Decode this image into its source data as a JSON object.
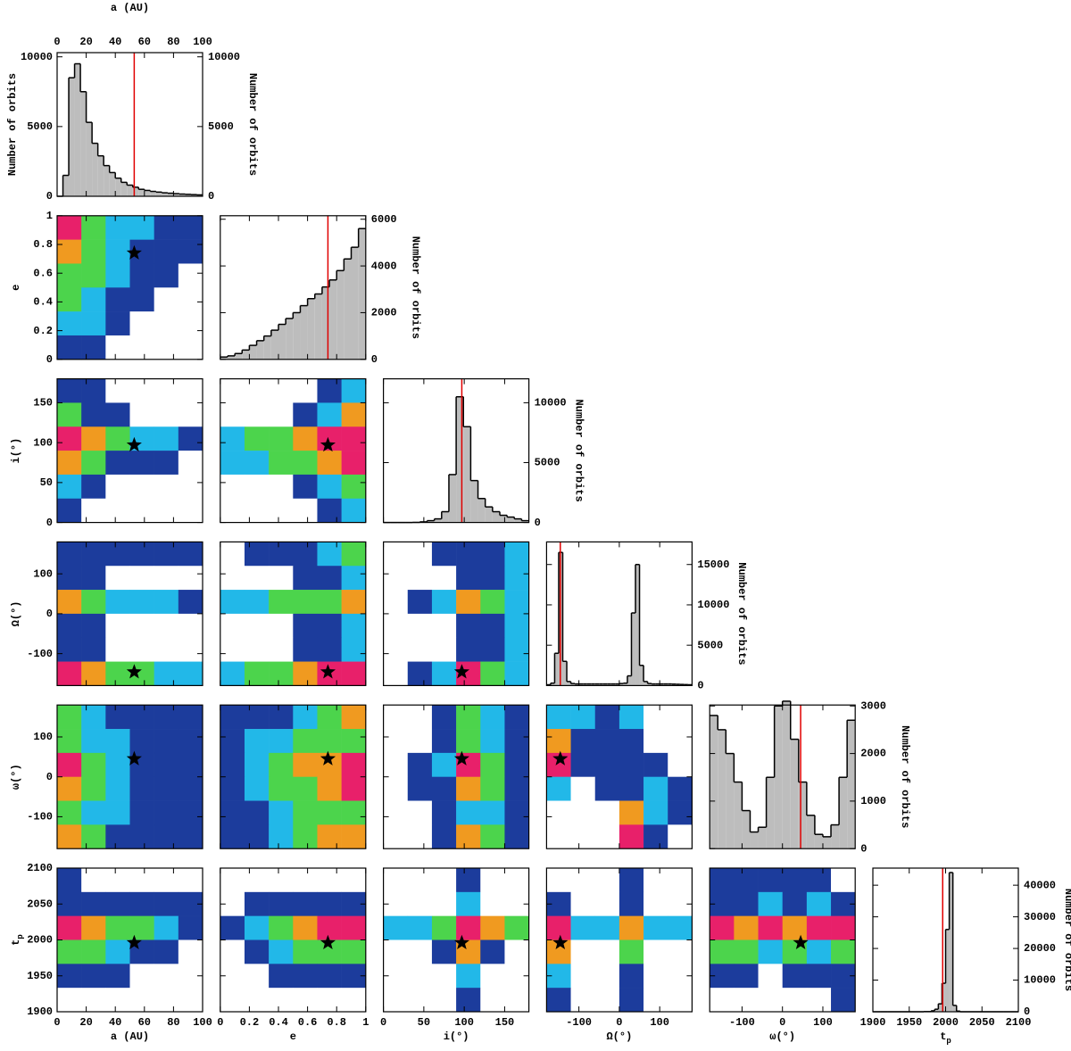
{
  "chart_data": {
    "type": "corner",
    "hist_ylabel": "Number of orbits",
    "hist_color": "#bdbdbd",
    "best_color": "#e00000",
    "density_colors": [
      "#ffffff",
      "#1c3c9c",
      "#22b8e8",
      "#4cd44c",
      "#f09a20",
      "#e8206a"
    ],
    "params": [
      {
        "label": "a (AU)",
        "lim": [
          0,
          100
        ],
        "ticks": [
          0,
          20,
          40,
          60,
          80,
          100
        ],
        "best": 53
      },
      {
        "label": "e",
        "lim": [
          0,
          1
        ],
        "ticks": [
          0,
          0.2,
          0.4,
          0.6,
          0.8,
          1
        ],
        "best": 0.74
      },
      {
        "label": "i(°)",
        "lim": [
          0,
          180
        ],
        "ticks": [
          0,
          50,
          100,
          150
        ],
        "best": 97
      },
      {
        "label": "Ω(°)",
        "lim": [
          -180,
          180
        ],
        "ticks": [
          -100,
          0,
          100
        ],
        "best": -146
      },
      {
        "label": "ω(°)",
        "lim": [
          -180,
          180
        ],
        "ticks": [
          -100,
          0,
          100
        ],
        "best": 45
      },
      {
        "label": "t",
        "sub": "p",
        "lim": [
          1900,
          2100
        ],
        "ticks": [
          1900,
          1950,
          2000,
          2050,
          2100
        ],
        "best": 1996
      }
    ],
    "histograms": [
      {
        "ylim": [
          0,
          10300
        ],
        "yticks": [
          0,
          5000,
          10000
        ],
        "bins": [
          0,
          4,
          8,
          12,
          16,
          20,
          24,
          28,
          32,
          36,
          40,
          44,
          48,
          52,
          56,
          60,
          64,
          68,
          72,
          76,
          80,
          84,
          88,
          92,
          96,
          100
        ],
        "values": [
          0,
          1500,
          8500,
          9500,
          7500,
          5300,
          3800,
          2900,
          2200,
          1700,
          1300,
          1000,
          800,
          650,
          500,
          420,
          350,
          300,
          250,
          220,
          190,
          160,
          140,
          120,
          100
        ]
      },
      {
        "ylim": [
          0,
          6150
        ],
        "yticks": [
          0,
          2000,
          4000,
          6000
        ],
        "bins": [
          0,
          0.05,
          0.1,
          0.15,
          0.2,
          0.25,
          0.3,
          0.35,
          0.4,
          0.45,
          0.5,
          0.55,
          0.6,
          0.65,
          0.7,
          0.75,
          0.8,
          0.85,
          0.9,
          0.95,
          1
        ],
        "values": [
          100,
          150,
          250,
          400,
          600,
          800,
          1000,
          1250,
          1500,
          1750,
          2000,
          2300,
          2600,
          2800,
          3100,
          3400,
          3800,
          4300,
          4800,
          5600
        ]
      },
      {
        "ylim": [
          0,
          12000
        ],
        "yticks": [
          0,
          5000,
          10000
        ],
        "bins": [
          0,
          9,
          18,
          27,
          36,
          45,
          54,
          63,
          72,
          81,
          90,
          99,
          108,
          117,
          126,
          135,
          144,
          153,
          162,
          171,
          180
        ],
        "values": [
          0,
          0,
          0,
          0,
          10,
          50,
          150,
          300,
          900,
          4000,
          10500,
          8000,
          3500,
          2000,
          1300,
          900,
          600,
          450,
          300,
          150
        ]
      },
      {
        "ylim": [
          0,
          17800
        ],
        "yticks": [
          0,
          5000,
          10000,
          15000
        ],
        "bins": [
          -180,
          -170,
          -160,
          -150,
          -140,
          -130,
          -120,
          -110,
          -100,
          -90,
          -80,
          -70,
          -60,
          -50,
          -40,
          -30,
          -20,
          -10,
          0,
          10,
          20,
          30,
          40,
          50,
          60,
          70,
          80,
          90,
          100,
          110,
          120,
          130,
          140,
          150,
          160,
          170,
          180
        ],
        "values": [
          100,
          300,
          4000,
          16500,
          3000,
          500,
          250,
          200,
          200,
          200,
          200,
          200,
          200,
          200,
          200,
          200,
          200,
          200,
          250,
          300,
          1200,
          9000,
          15000,
          2500,
          500,
          250,
          200,
          200,
          200,
          200,
          200,
          180,
          160,
          140,
          120,
          100
        ]
      },
      {
        "ylim": [
          0,
          3020
        ],
        "yticks": [
          0,
          1000,
          2000,
          3000
        ],
        "bins": [
          -180,
          -160,
          -140,
          -120,
          -100,
          -80,
          -60,
          -40,
          -20,
          0,
          20,
          40,
          60,
          80,
          100,
          120,
          140,
          160,
          180
        ],
        "values": [
          2800,
          2500,
          2000,
          1400,
          800,
          350,
          450,
          1500,
          3000,
          3100,
          2300,
          1400,
          700,
          300,
          250,
          500,
          1500,
          2700
        ]
      },
      {
        "ylim": [
          0,
          45400
        ],
        "yticks": [
          0,
          10000,
          20000,
          30000,
          40000
        ],
        "bins": [
          1900,
          1910,
          1920,
          1930,
          1940,
          1950,
          1960,
          1970,
          1980,
          1985,
          1990,
          1995,
          2000,
          2005,
          2010,
          2015,
          2020,
          2030,
          2040,
          2050,
          2060,
          2070,
          2080,
          2090,
          2100
        ],
        "values": [
          0,
          0,
          0,
          0,
          0,
          0,
          0,
          50,
          300,
          800,
          2500,
          9000,
          26000,
          44000,
          2000,
          200,
          0,
          0,
          0,
          0,
          0,
          0,
          0,
          0
        ]
      }
    ],
    "density": [
      {
        "z": [
          [
            5,
            3,
            2,
            2,
            1,
            1
          ],
          [
            4,
            3,
            2,
            1,
            1,
            1
          ],
          [
            3,
            3,
            2,
            1,
            1,
            0
          ],
          [
            3,
            2,
            1,
            1,
            0,
            0
          ],
          [
            2,
            2,
            1,
            0,
            0,
            0
          ],
          [
            1,
            1,
            0,
            0,
            0,
            0
          ]
        ]
      },
      {
        "z": [
          [
            1,
            1,
            0,
            0,
            0,
            0
          ],
          [
            3,
            1,
            1,
            0,
            0,
            0
          ],
          [
            5,
            4,
            3,
            2,
            2,
            1
          ],
          [
            4,
            3,
            1,
            1,
            1,
            0
          ],
          [
            2,
            1,
            0,
            0,
            0,
            0
          ],
          [
            1,
            0,
            0,
            0,
            0,
            0
          ]
        ]
      },
      {
        "z": [
          [
            0,
            0,
            0,
            0,
            1,
            2
          ],
          [
            0,
            0,
            0,
            1,
            2,
            4
          ],
          [
            2,
            3,
            3,
            4,
            5,
            5
          ],
          [
            2,
            2,
            3,
            3,
            4,
            5
          ],
          [
            0,
            0,
            0,
            1,
            2,
            3
          ],
          [
            0,
            0,
            0,
            0,
            1,
            2
          ]
        ]
      },
      {
        "z": [
          [
            1,
            1,
            1,
            1,
            1,
            1
          ],
          [
            1,
            1,
            0,
            0,
            0,
            0
          ],
          [
            4,
            3,
            2,
            2,
            2,
            1
          ],
          [
            1,
            1,
            0,
            0,
            0,
            0
          ],
          [
            1,
            1,
            0,
            0,
            0,
            0
          ],
          [
            5,
            4,
            3,
            3,
            2,
            2
          ]
        ]
      },
      {
        "z": [
          [
            0,
            1,
            1,
            1,
            2,
            3
          ],
          [
            0,
            0,
            0,
            1,
            1,
            2
          ],
          [
            2,
            2,
            3,
            3,
            3,
            4
          ],
          [
            0,
            0,
            0,
            1,
            1,
            2
          ],
          [
            0,
            0,
            0,
            1,
            1,
            2
          ],
          [
            2,
            3,
            3,
            4,
            5,
            5
          ]
        ]
      },
      {
        "z": [
          [
            0,
            0,
            1,
            1,
            1,
            2
          ],
          [
            0,
            0,
            0,
            1,
            1,
            2
          ],
          [
            0,
            1,
            2,
            4,
            3,
            2
          ],
          [
            0,
            0,
            0,
            1,
            1,
            2
          ],
          [
            0,
            0,
            0,
            1,
            1,
            2
          ],
          [
            0,
            1,
            2,
            5,
            3,
            2
          ]
        ]
      },
      {
        "z": [
          [
            3,
            2,
            1,
            1,
            1,
            1
          ],
          [
            3,
            2,
            2,
            1,
            1,
            1
          ],
          [
            5,
            3,
            2,
            1,
            1,
            1
          ],
          [
            4,
            3,
            2,
            1,
            1,
            1
          ],
          [
            3,
            2,
            2,
            1,
            1,
            1
          ],
          [
            4,
            3,
            1,
            1,
            1,
            1
          ]
        ]
      },
      {
        "z": [
          [
            1,
            1,
            1,
            2,
            3,
            4
          ],
          [
            1,
            2,
            2,
            3,
            3,
            3
          ],
          [
            1,
            2,
            3,
            4,
            4,
            5
          ],
          [
            1,
            2,
            3,
            3,
            4,
            5
          ],
          [
            1,
            1,
            2,
            3,
            3,
            3
          ],
          [
            1,
            1,
            2,
            3,
            4,
            4
          ]
        ]
      },
      {
        "z": [
          [
            0,
            0,
            1,
            3,
            2,
            1
          ],
          [
            0,
            0,
            1,
            3,
            2,
            1
          ],
          [
            0,
            1,
            2,
            5,
            3,
            1
          ],
          [
            0,
            1,
            1,
            4,
            3,
            1
          ],
          [
            0,
            0,
            1,
            2,
            2,
            1
          ],
          [
            0,
            0,
            1,
            4,
            3,
            1
          ]
        ]
      },
      {
        "z": [
          [
            2,
            2,
            1,
            2,
            0,
            0
          ],
          [
            4,
            1,
            1,
            1,
            0,
            0
          ],
          [
            5,
            1,
            1,
            1,
            1,
            0
          ],
          [
            2,
            0,
            1,
            1,
            2,
            1
          ],
          [
            0,
            0,
            0,
            4,
            2,
            1
          ],
          [
            0,
            0,
            0,
            5,
            1,
            0
          ]
        ]
      },
      {
        "z": [
          [
            1,
            0,
            0,
            0,
            0,
            0
          ],
          [
            1,
            1,
            1,
            1,
            1,
            1
          ],
          [
            5,
            4,
            3,
            3,
            2,
            1
          ],
          [
            3,
            3,
            2,
            1,
            1,
            0
          ],
          [
            1,
            1,
            1,
            0,
            0,
            0
          ],
          [
            0,
            0,
            0,
            0,
            0,
            0
          ]
        ]
      },
      {
        "z": [
          [
            0,
            0,
            0,
            0,
            0,
            0
          ],
          [
            0,
            1,
            1,
            1,
            1,
            1
          ],
          [
            1,
            2,
            3,
            4,
            5,
            5
          ],
          [
            0,
            1,
            2,
            3,
            3,
            3
          ],
          [
            0,
            0,
            1,
            1,
            1,
            1
          ],
          [
            0,
            0,
            0,
            0,
            0,
            0
          ]
        ]
      },
      {
        "z": [
          [
            0,
            0,
            0,
            1,
            0,
            0
          ],
          [
            0,
            0,
            0,
            2,
            0,
            0
          ],
          [
            2,
            2,
            3,
            5,
            4,
            3
          ],
          [
            0,
            0,
            1,
            4,
            1,
            0
          ],
          [
            0,
            0,
            0,
            2,
            0,
            0
          ],
          [
            0,
            0,
            0,
            1,
            0,
            0
          ]
        ]
      },
      {
        "z": [
          [
            0,
            0,
            0,
            1,
            0,
            0
          ],
          [
            1,
            0,
            0,
            1,
            0,
            0
          ],
          [
            5,
            2,
            2,
            4,
            2,
            2
          ],
          [
            4,
            0,
            0,
            3,
            0,
            0
          ],
          [
            2,
            0,
            0,
            1,
            0,
            0
          ],
          [
            1,
            0,
            0,
            1,
            0,
            0
          ]
        ]
      },
      {
        "z": [
          [
            1,
            1,
            1,
            1,
            1,
            0
          ],
          [
            1,
            1,
            2,
            1,
            2,
            1
          ],
          [
            5,
            4,
            5,
            4,
            5,
            5
          ],
          [
            3,
            3,
            2,
            3,
            2,
            3
          ],
          [
            1,
            1,
            0,
            1,
            1,
            1
          ],
          [
            0,
            0,
            0,
            0,
            0,
            1
          ]
        ]
      }
    ]
  }
}
